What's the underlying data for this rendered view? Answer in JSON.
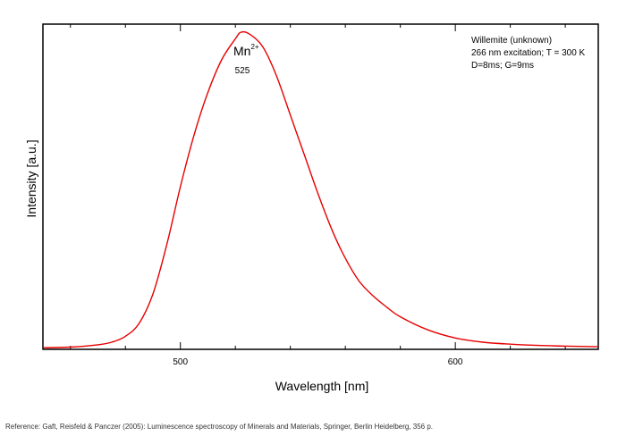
{
  "chart_data": {
    "type": "line",
    "xlabel": "Wavelength [nm]",
    "ylabel": "Intensity [a.u.]",
    "xlim": [
      450,
      652
    ],
    "ylim": [
      0,
      1.0
    ],
    "x_ticks": [
      500,
      600
    ],
    "y_tick_labels": false,
    "grid": false,
    "legend": "none",
    "line_color": "#e60000",
    "annotations": {
      "ion_base": "Mn",
      "ion_charge": "2+",
      "peak_label": "525",
      "info_lines": [
        "Willemite (unknown)",
        "266 nm excitation; T = 300 K",
        "D=8ms; G=9ms"
      ]
    },
    "series": [
      {
        "x": [
          450,
          460,
          470,
          475,
          480,
          485,
          490,
          495,
          500,
          505,
          510,
          515,
          520,
          522,
          525,
          530,
          535,
          540,
          545,
          550,
          555,
          560,
          565,
          570,
          575,
          580,
          590,
          600,
          610,
          620,
          630,
          640,
          652
        ],
        "y": [
          0.005,
          0.007,
          0.014,
          0.022,
          0.04,
          0.08,
          0.17,
          0.32,
          0.5,
          0.66,
          0.79,
          0.89,
          0.955,
          0.975,
          0.97,
          0.93,
          0.84,
          0.72,
          0.6,
          0.48,
          0.37,
          0.28,
          0.21,
          0.165,
          0.13,
          0.1,
          0.06,
          0.035,
          0.022,
          0.016,
          0.012,
          0.01,
          0.008
        ]
      }
    ]
  },
  "footer": {
    "reference": "Reference: Gaft, Reisfeld & Panczer (2005): Luminescence spectroscopy of Minerals and Materials, Springer, Berlin Heidelberg, 356 p."
  }
}
